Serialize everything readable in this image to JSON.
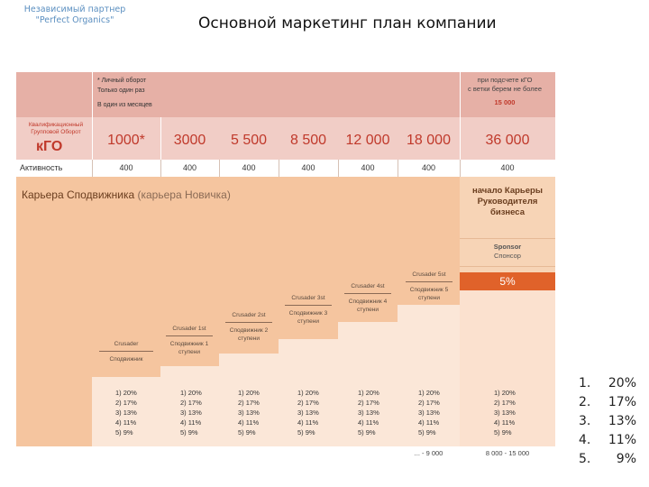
{
  "header": {
    "partner_line1": "Независимый партнер",
    "partner_line2": "\"Perfect Organics\"",
    "title": "Основной маркетинг план компании"
  },
  "table": {
    "top_note_lines": [
      "* Личный оборот",
      "Только один раз",
      "В один из месяцев"
    ],
    "left_note_lines": [
      "Квалификационный",
      "Групповой Оборот"
    ],
    "kgo_label": "кГО",
    "right_note_lines": [
      "при подсчете кГО",
      "с ветки берем не более",
      "15 000"
    ],
    "kgo_values": [
      "1000*",
      "3000",
      "5 500",
      "8 500",
      "12 000",
      "18 000",
      "36 000"
    ],
    "activity_label": "Активность",
    "activity_values": [
      "400",
      "400",
      "400",
      "400",
      "400",
      "400",
      "400"
    ],
    "career_title": "Карьера Сподвижника",
    "career_subtitle": "(карьера Новичка)",
    "leader_lines": [
      "начало Карьеры",
      "Руководителя",
      "бизнеса"
    ],
    "sponsor_lines": [
      "Sponsor",
      "Спонсор"
    ],
    "sponsor_percent": "5%",
    "steps": [
      {
        "name": "Crusader",
        "local": "Сподвижник"
      },
      {
        "name": "Crusader 1st",
        "local": "Сподвижник 1 ступени"
      },
      {
        "name": "Crusader 2st",
        "local": "Сподвижник 2 ступени"
      },
      {
        "name": "Crusader 3st",
        "local": "Сподвижник 3 ступени"
      },
      {
        "name": "Crusader 4st",
        "local": "Сподвижник 4 ступени"
      },
      {
        "name": "Crusader 5st",
        "local": "Сподвижник 5 ступени"
      }
    ],
    "level_percents": [
      "1) 20%",
      "2) 17%",
      "3) 13%",
      "4) 11%",
      "5) 9%"
    ],
    "range_left": "... - 9 000",
    "range_right": "8 000 - 15 000"
  },
  "side_list": [
    {
      "num": "1.",
      "pct": "20%"
    },
    {
      "num": "2.",
      "pct": "17%"
    },
    {
      "num": "3.",
      "pct": "13%"
    },
    {
      "num": "4.",
      "pct": "11%"
    },
    {
      "num": "5.",
      "pct": "9%"
    }
  ]
}
